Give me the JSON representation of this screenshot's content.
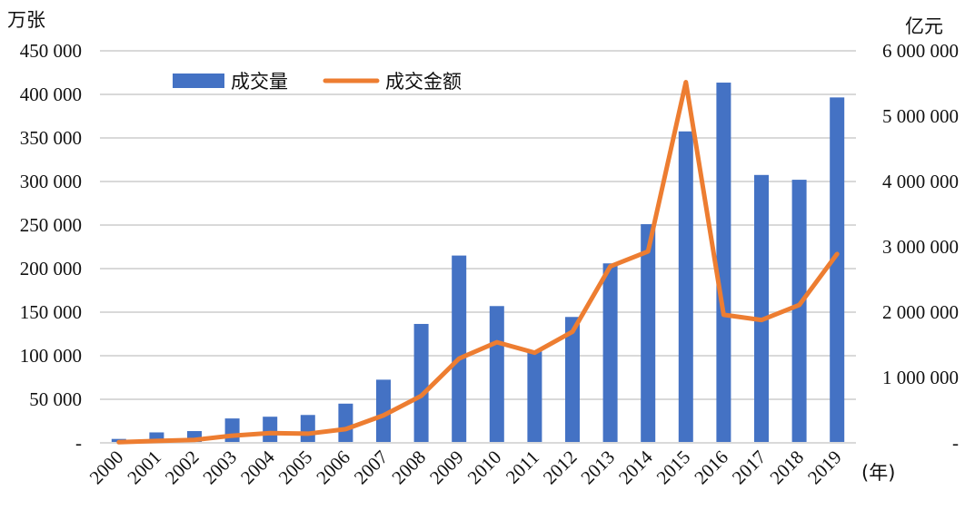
{
  "chart_data": {
    "type": "bar+line",
    "left_unit": "万张",
    "right_unit": "亿元",
    "x_unit": "(年)",
    "categories": [
      "2000",
      "2001",
      "2002",
      "2003",
      "2004",
      "2005",
      "2006",
      "2007",
      "2008",
      "2009",
      "2010",
      "2011",
      "2012",
      "2013",
      "2014",
      "2015",
      "2016",
      "2017",
      "2018",
      "2019"
    ],
    "series": [
      {
        "name": "成交量",
        "type": "bar",
        "axis": "left",
        "color": "#4472C4",
        "values": [
          4500,
          12000,
          13500,
          28000,
          30000,
          32000,
          45000,
          72500,
          136500,
          215000,
          157000,
          105000,
          144500,
          206000,
          251000,
          357500,
          413500,
          307500,
          302000,
          396500
        ]
      },
      {
        "name": "成交金额",
        "type": "line",
        "axis": "right",
        "color": "#ED7D31",
        "values": [
          10000,
          30000,
          45000,
          110000,
          150000,
          140000,
          210000,
          420000,
          720000,
          1290000,
          1540000,
          1380000,
          1700000,
          2700000,
          2930000,
          5520000,
          1960000,
          1880000,
          2110000,
          2890000
        ]
      }
    ],
    "left_axis": {
      "ylim": [
        0,
        450000
      ],
      "ticks": [
        "-",
        "50 000",
        "100 000",
        "150 000",
        "200 000",
        "250 000",
        "300 000",
        "350 000",
        "400 000",
        "450 000"
      ]
    },
    "right_axis": {
      "ylim": [
        0,
        6000000
      ],
      "ticks": [
        "-",
        "1 000 000",
        "2 000 000",
        "3 000 000",
        "4 000 000",
        "5 000 000",
        "6 000 000"
      ]
    },
    "grid": "horizontal",
    "legend_position": "top-left"
  }
}
